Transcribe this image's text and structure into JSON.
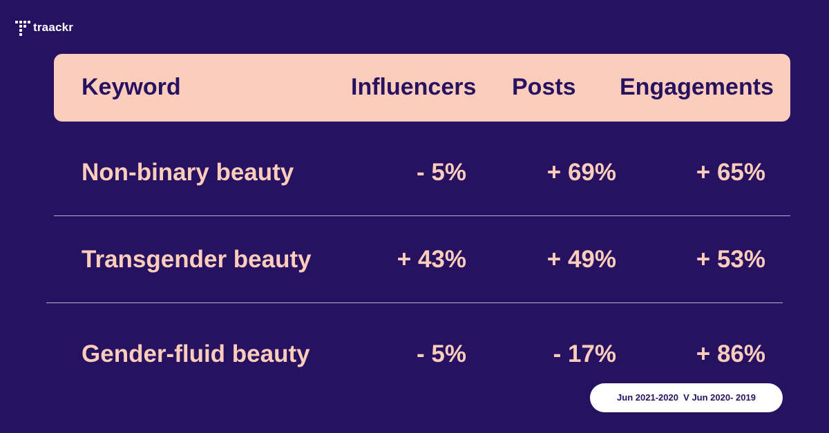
{
  "brand": {
    "logo_text": "traackr",
    "colors": {
      "background": "#261261",
      "header_fill": "#fccdbb",
      "text_light": "#fccdbb",
      "text_dark": "#261261",
      "badge_fill": "#ffffff"
    }
  },
  "chart_data": {
    "type": "table",
    "columns": [
      "Keyword",
      "Influencers",
      "Posts",
      "Engagements"
    ],
    "rows": [
      {
        "keyword": "Non-binary beauty",
        "influencers": "- 5%",
        "posts": "+ 69%",
        "engagements": "+ 65%"
      },
      {
        "keyword": "Transgender beauty",
        "influencers": "+ 43%",
        "posts": "+ 49%",
        "engagements": "+ 53%"
      },
      {
        "keyword": "Gender-fluid beauty",
        "influencers": "- 5%",
        "posts": "- 17%",
        "engagements": "+ 86%"
      }
    ]
  },
  "footnote": {
    "period_label": "Jun 2021-2020  V Jun 2020- 2019"
  }
}
